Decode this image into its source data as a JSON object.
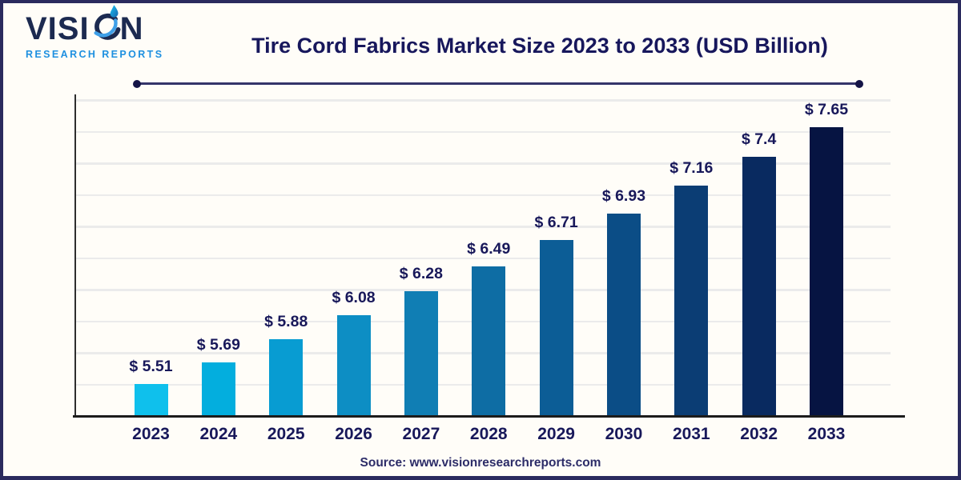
{
  "header": {
    "logo": {
      "brand_pre": "VISI",
      "brand_post": "N",
      "brand_full": "VISION",
      "subtitle": "RESEARCH REPORTS"
    },
    "title": "Tire Cord Fabrics Market Size 2023 to 2033 (USD Billion)"
  },
  "footer": {
    "source": "Source: www.visionresearchreports.com"
  },
  "chart_data": {
    "type": "bar",
    "title": "Tire Cord Fabrics Market Size 2023 to 2033 (USD Billion)",
    "unit": "USD Billion",
    "categories": [
      "2023",
      "2024",
      "2025",
      "2026",
      "2027",
      "2028",
      "2029",
      "2030",
      "2031",
      "2032",
      "2033"
    ],
    "values": [
      5.51,
      5.69,
      5.88,
      6.08,
      6.28,
      6.49,
      6.71,
      6.93,
      7.16,
      7.4,
      7.65
    ],
    "value_labels": [
      "$ 5.51",
      "$ 5.69",
      "$ 5.88",
      "$ 6.08",
      "$ 6.28",
      "$ 6.49",
      "$ 6.71",
      "$ 6.93",
      "$ 7.16",
      "$ 7.4",
      "$ 7.65"
    ],
    "ylim": [
      5.25,
      7.88
    ],
    "grid": true,
    "gridline_count": 10,
    "legend": false,
    "bar_colors": [
      "#0fc0ec",
      "#03aede",
      "#089cd2",
      "#0d8ec4",
      "#107eb4",
      "#0e6da4",
      "#0c5d96",
      "#0b4d86",
      "#0b3d74",
      "#092a60",
      "#061442"
    ]
  },
  "colors": {
    "text_navy": "#17175c",
    "frame_border": "#2b2b5e",
    "logo_navy": "#1c2a50",
    "logo_blue": "#1e90e0",
    "gridline": "#ebebeb",
    "background": "#fffdf8"
  }
}
